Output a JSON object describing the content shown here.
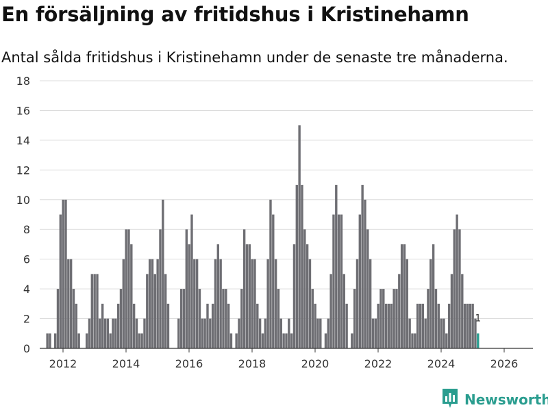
{
  "title": "En försäljning av fritidshus i Kristinehamn",
  "subtitle": "Antal sålda fritidshus i Kristinehamn under de senaste tre månaderna.",
  "brand": {
    "name": "Newsworthy",
    "icon": "bar-chart-logo-icon",
    "color": "#2a9d8f"
  },
  "colors": {
    "bar": "#6e6e73",
    "highlight": "#2a9d8f",
    "grid": "#dcdcdc",
    "axis": "#333333"
  },
  "chart_data": {
    "type": "bar",
    "title": "En försäljning av fritidshus i Kristinehamn",
    "xlabel": "",
    "ylabel": "",
    "ylim": [
      0,
      18
    ],
    "y_ticks": [
      0,
      2,
      4,
      6,
      8,
      10,
      12,
      14,
      16,
      18
    ],
    "x_ticks": [
      2012,
      2014,
      2016,
      2018,
      2020,
      2022,
      2024,
      2026
    ],
    "x_start": 2011.42,
    "step": 0.08333,
    "values": [
      0,
      1,
      1,
      0,
      1,
      4,
      9,
      10,
      10,
      6,
      6,
      4,
      3,
      1,
      0,
      0,
      1,
      2,
      5,
      5,
      5,
      2,
      3,
      2,
      2,
      1,
      2,
      2,
      3,
      4,
      6,
      8,
      8,
      7,
      3,
      2,
      1,
      1,
      2,
      5,
      6,
      6,
      5,
      6,
      8,
      10,
      5,
      3,
      0,
      0,
      0,
      2,
      4,
      4,
      8,
      7,
      9,
      6,
      6,
      4,
      2,
      2,
      3,
      2,
      3,
      6,
      7,
      6,
      4,
      4,
      3,
      1,
      0,
      1,
      2,
      4,
      8,
      7,
      7,
      6,
      6,
      3,
      2,
      1,
      2,
      6,
      10,
      9,
      6,
      4,
      2,
      1,
      1,
      2,
      1,
      7,
      11,
      15,
      11,
      8,
      7,
      6,
      4,
      3,
      2,
      2,
      0,
      1,
      2,
      5,
      9,
      11,
      9,
      9,
      5,
      3,
      0,
      1,
      4,
      6,
      9,
      11,
      10,
      8,
      6,
      2,
      2,
      3,
      4,
      4,
      3,
      3,
      3,
      4,
      4,
      5,
      7,
      7,
      6,
      2,
      1,
      1,
      3,
      3,
      3,
      2,
      4,
      6,
      7,
      4,
      3,
      2,
      2,
      1,
      3,
      5,
      8,
      9,
      8,
      5,
      3,
      3,
      3,
      3,
      2,
      1
    ],
    "last_value_label": "1"
  }
}
